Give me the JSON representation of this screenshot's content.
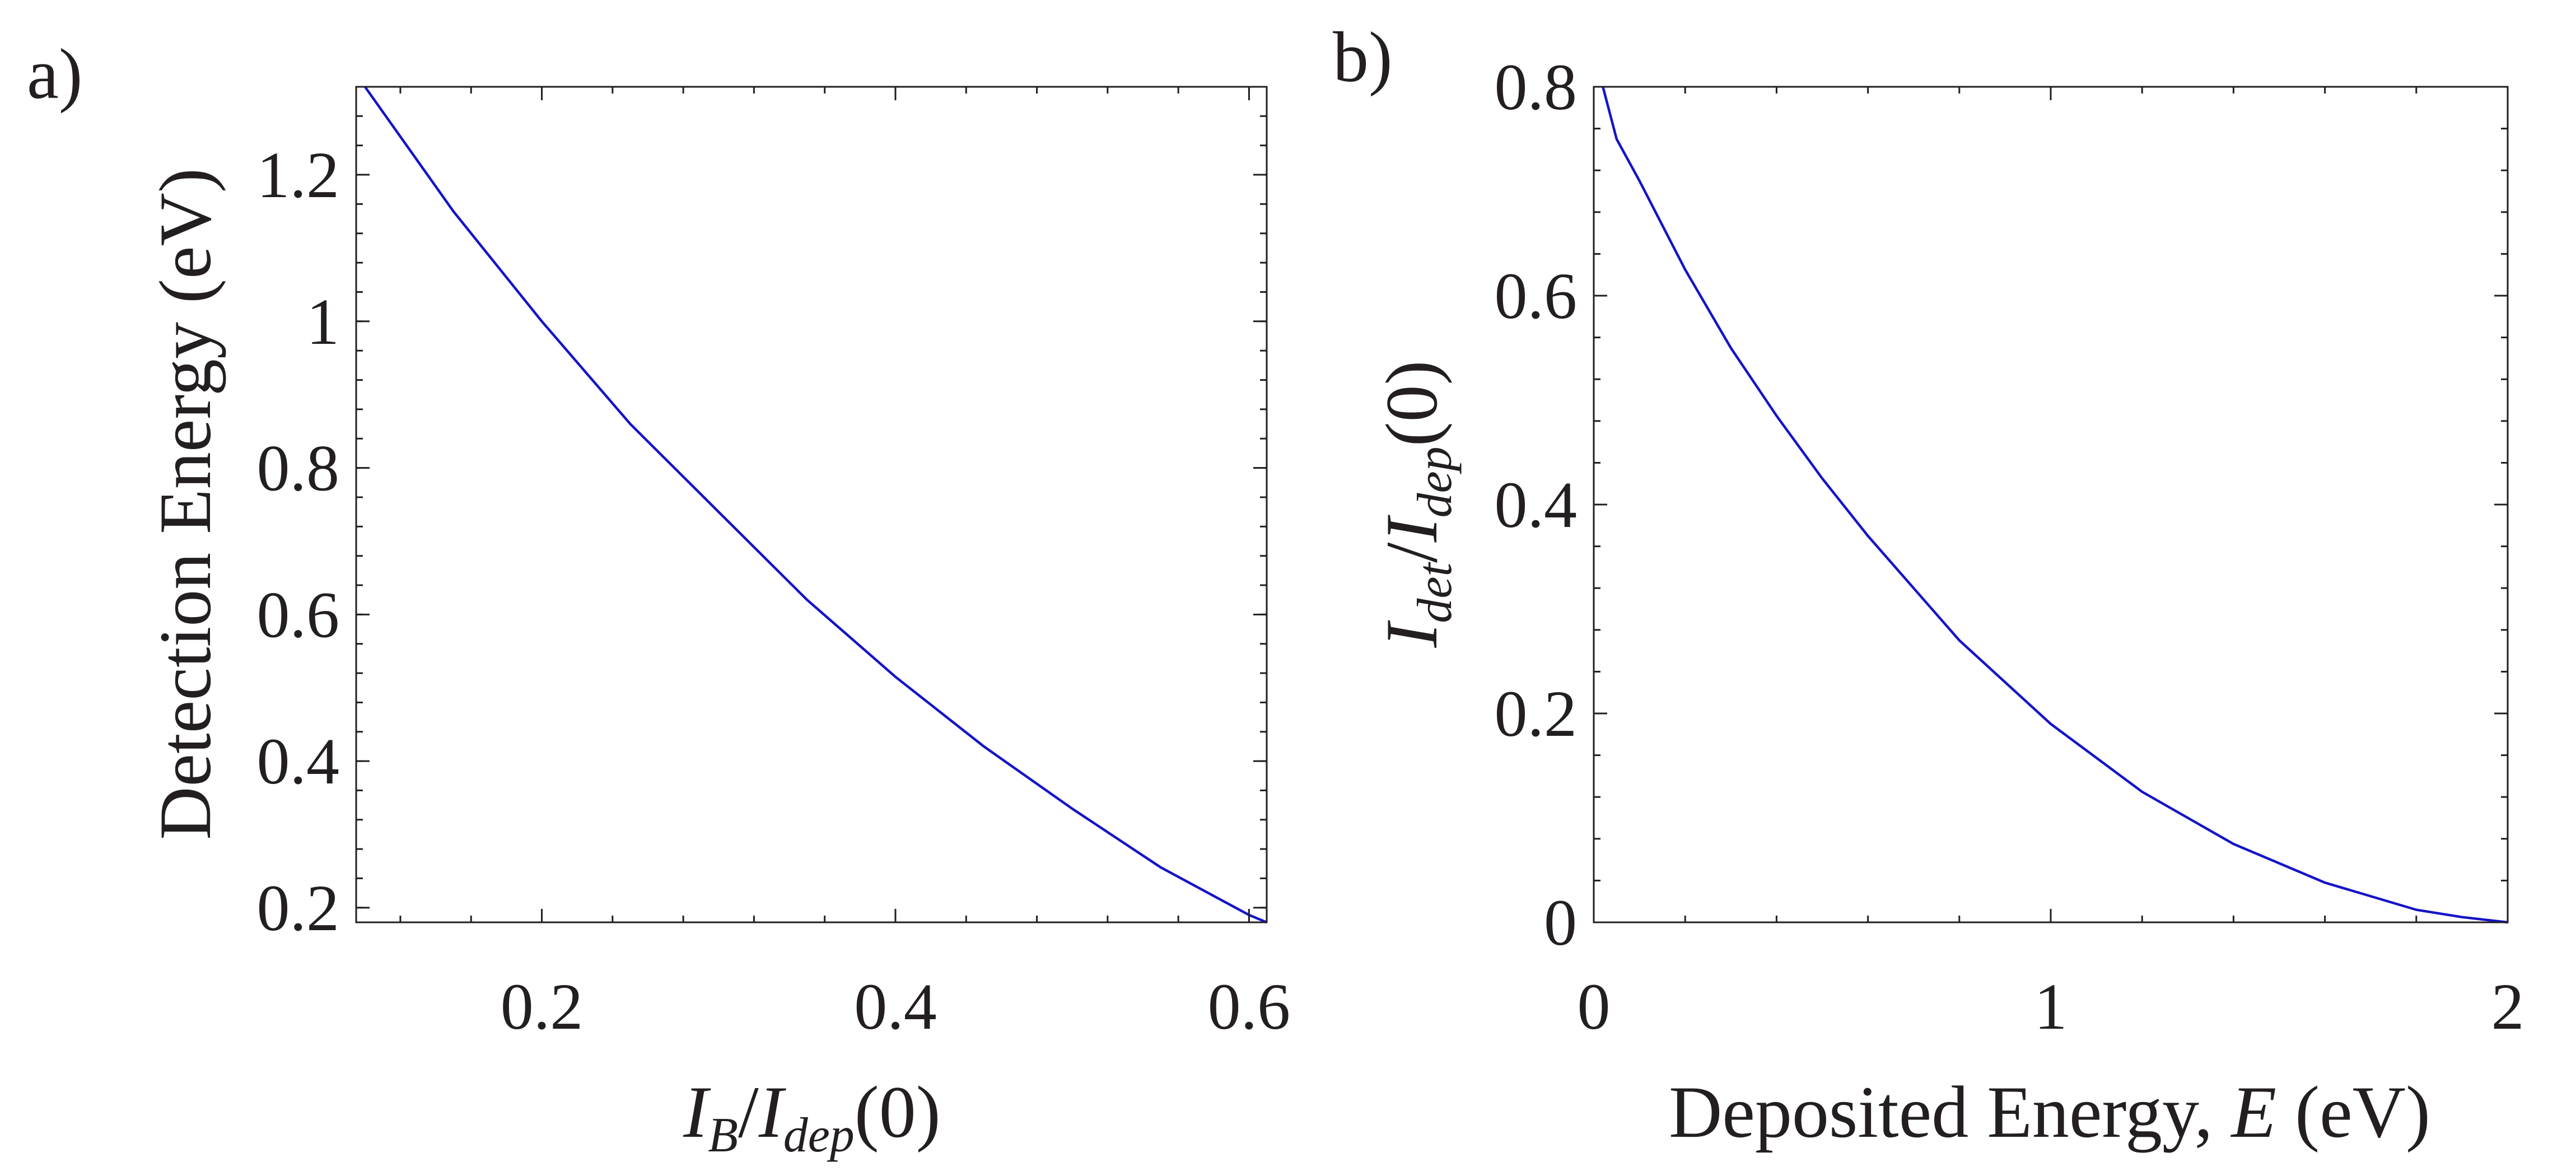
{
  "chart_data": [
    {
      "type": "line",
      "panel_label": "a)",
      "xlabel_parts": {
        "italic_I1": "I",
        "sub1": "B",
        "slash": "/",
        "italic_I2": "I",
        "sub2": "dep",
        "tail": "(0)"
      },
      "ylabel": "Detection Energy (eV)",
      "xlim": [
        0.095,
        0.61
      ],
      "ylim": [
        0.18,
        1.32
      ],
      "xticks": [
        0.2,
        0.4,
        0.6
      ],
      "xtick_labels": [
        "0.2",
        "0.4",
        "0.6"
      ],
      "yticks": [
        0.2,
        0.4,
        0.6,
        0.8,
        1.0,
        1.2
      ],
      "ytick_labels": [
        "0.2",
        "0.4",
        "0.6",
        "0.8",
        "1",
        "1.2"
      ],
      "grid": false,
      "series": [
        {
          "color": "#1414c8",
          "x": [
            0.1,
            0.15,
            0.2,
            0.25,
            0.3,
            0.35,
            0.4,
            0.45,
            0.5,
            0.55,
            0.6,
            0.61
          ],
          "y": [
            1.32,
            1.15,
            1.0,
            0.86,
            0.74,
            0.62,
            0.515,
            0.42,
            0.335,
            0.255,
            0.19,
            0.18
          ]
        }
      ]
    },
    {
      "type": "line",
      "panel_label": "b)",
      "xlabel_parts": {
        "pre": "Deposited Energy, ",
        "italic": "E",
        "post": " (eV)"
      },
      "ylabel_parts": {
        "italic_I1": "I",
        "sub1": "det",
        "slash": "/",
        "italic_I2": "I",
        "sub2": "dep",
        "tail": "(0)"
      },
      "xlim": [
        0,
        2
      ],
      "ylim": [
        0,
        0.8
      ],
      "xticks": [
        0,
        1,
        2
      ],
      "xtick_labels": [
        "0",
        "1",
        "2"
      ],
      "yticks": [
        0,
        0.2,
        0.4,
        0.6,
        0.8
      ],
      "ytick_labels": [
        "0",
        "0.2",
        "0.4",
        "0.6",
        "0.8"
      ],
      "grid": false,
      "series": [
        {
          "color": "#1414c8",
          "x": [
            0.02,
            0.05,
            0.1,
            0.2,
            0.3,
            0.4,
            0.5,
            0.6,
            0.8,
            1.0,
            1.2,
            1.4,
            1.6,
            1.8,
            1.9,
            2.0
          ],
          "y": [
            0.8,
            0.75,
            0.71,
            0.625,
            0.55,
            0.485,
            0.425,
            0.37,
            0.27,
            0.19,
            0.125,
            0.075,
            0.038,
            0.012,
            0.005,
            0.0
          ]
        }
      ]
    }
  ]
}
